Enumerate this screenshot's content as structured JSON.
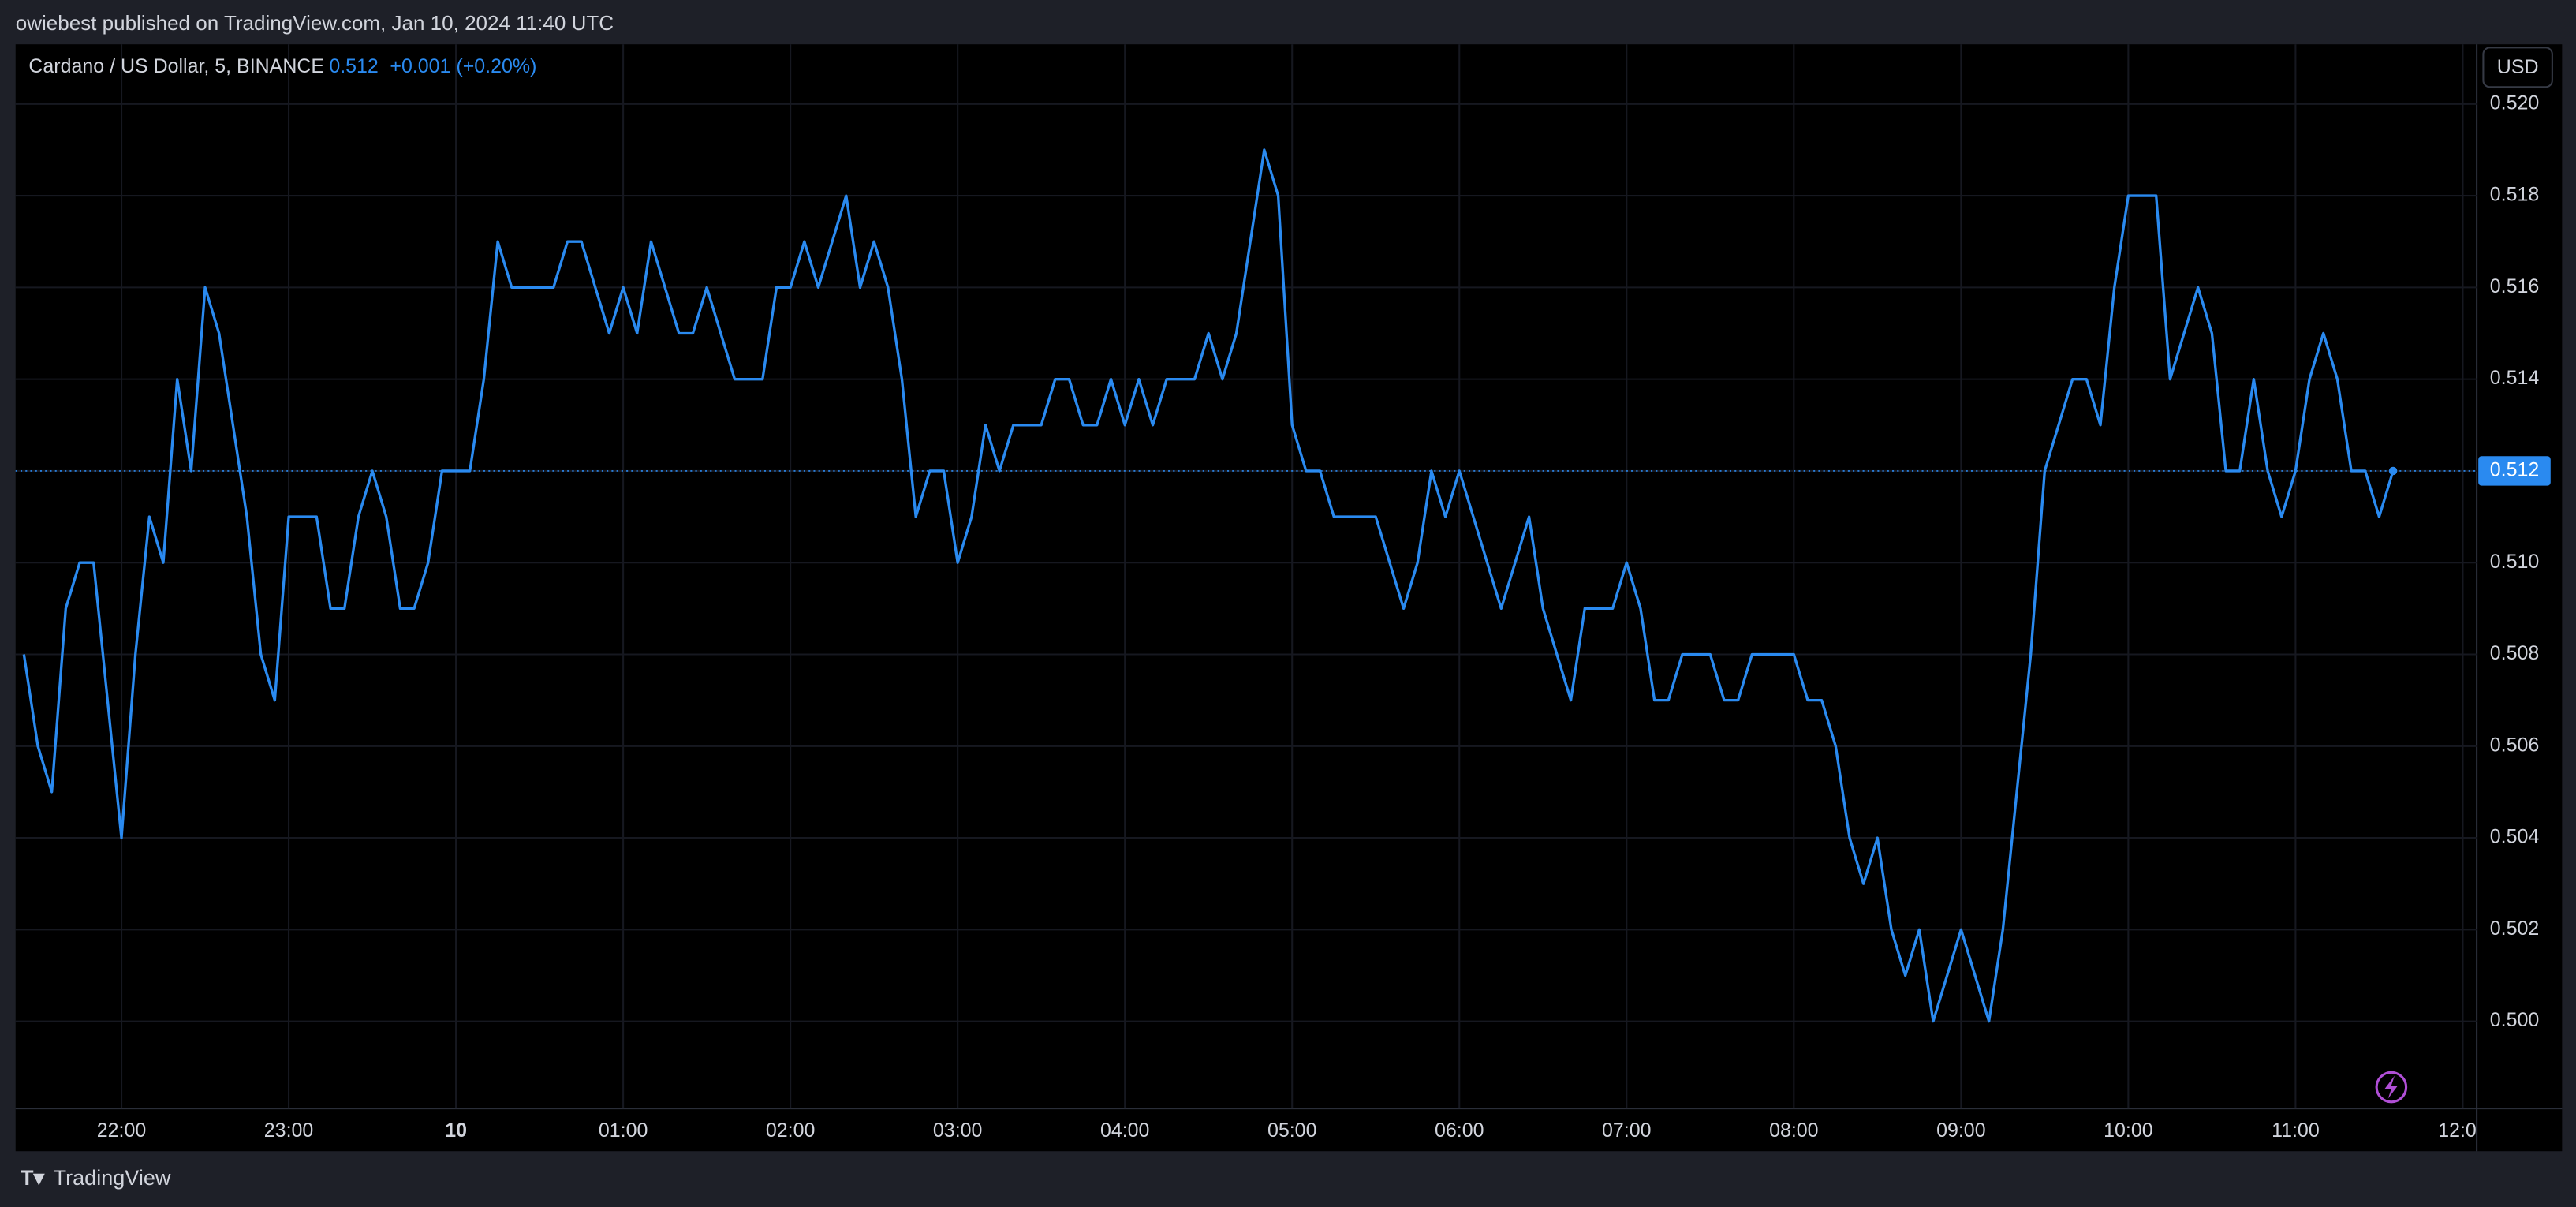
{
  "header": {
    "text": "owiebest published on TradingView.com, Jan 10, 2024 11:40 UTC"
  },
  "footer": {
    "brand": "TradingView"
  },
  "chart_data": {
    "type": "line",
    "change": "+0.001 (+0.20%)",
    "currency": "USD",
    "x": [
      "21:25",
      "21:30",
      "21:35",
      "21:40",
      "21:45",
      "21:50",
      "21:55",
      "22:00",
      "22:05",
      "22:10",
      "22:15",
      "22:20",
      "22:25",
      "22:30",
      "22:35",
      "22:40",
      "22:45",
      "22:50",
      "22:55",
      "23:00",
      "23:05",
      "23:10",
      "23:15",
      "23:20",
      "23:25",
      "23:30",
      "23:35",
      "23:40",
      "23:45",
      "23:50",
      "23:55",
      "00:00",
      "00:05",
      "00:10",
      "00:15",
      "00:20",
      "00:25",
      "00:30",
      "00:35",
      "00:40",
      "00:45",
      "00:50",
      "00:55",
      "01:00",
      "01:05",
      "01:10",
      "01:15",
      "01:20",
      "01:25",
      "01:30",
      "01:35",
      "01:40",
      "01:45",
      "01:50",
      "01:55",
      "02:00",
      "02:05",
      "02:10",
      "02:15",
      "02:20",
      "02:25",
      "02:30",
      "02:35",
      "02:40",
      "02:45",
      "02:50",
      "02:55",
      "03:00",
      "03:05",
      "03:10",
      "03:15",
      "03:20",
      "03:25",
      "03:30",
      "03:35",
      "03:40",
      "03:45",
      "03:50",
      "03:55",
      "04:00",
      "04:05",
      "04:10",
      "04:15",
      "04:20",
      "04:25",
      "04:30",
      "04:35",
      "04:40",
      "04:45",
      "04:50",
      "04:55",
      "05:00",
      "05:05",
      "05:10",
      "05:15",
      "05:20",
      "05:25",
      "05:30",
      "05:35",
      "05:40",
      "05:45",
      "05:50",
      "05:55",
      "06:00",
      "06:05",
      "06:10",
      "06:15",
      "06:20",
      "06:25",
      "06:30",
      "06:35",
      "06:40",
      "06:45",
      "06:50",
      "06:55",
      "07:00",
      "07:05",
      "07:10",
      "07:15",
      "07:20",
      "07:25",
      "07:30",
      "07:35",
      "07:40",
      "07:45",
      "07:50",
      "07:55",
      "08:00",
      "08:05",
      "08:10",
      "08:15",
      "08:20",
      "08:25",
      "08:30",
      "08:35",
      "08:40",
      "08:45",
      "08:50",
      "08:55",
      "09:00",
      "09:05",
      "09:10",
      "09:15",
      "09:20",
      "09:25",
      "09:30",
      "09:35",
      "09:40",
      "09:45",
      "09:50",
      "09:55",
      "10:00",
      "10:05",
      "10:10",
      "10:15",
      "10:20",
      "10:25",
      "10:30",
      "10:35",
      "10:40",
      "10:45",
      "10:50",
      "10:55",
      "11:00",
      "11:05",
      "11:10",
      "11:15",
      "11:20",
      "11:25",
      "11:30",
      "11:35"
    ],
    "series": [
      {
        "name": "Cardano / US Dollar, 5, BINANCE",
        "color": "#2a8af0",
        "values": [
          0.508,
          0.506,
          0.505,
          0.509,
          0.51,
          0.51,
          0.507,
          0.504,
          0.508,
          0.511,
          0.51,
          0.514,
          0.512,
          0.516,
          0.515,
          0.513,
          0.511,
          0.508,
          0.507,
          0.511,
          0.511,
          0.511,
          0.509,
          0.509,
          0.511,
          0.512,
          0.511,
          0.509,
          0.509,
          0.51,
          0.512,
          0.512,
          0.512,
          0.514,
          0.517,
          0.516,
          0.516,
          0.516,
          0.516,
          0.517,
          0.517,
          0.516,
          0.515,
          0.516,
          0.515,
          0.517,
          0.516,
          0.515,
          0.515,
          0.516,
          0.515,
          0.514,
          0.514,
          0.514,
          0.516,
          0.516,
          0.517,
          0.516,
          0.517,
          0.518,
          0.516,
          0.517,
          0.516,
          0.514,
          0.511,
          0.512,
          0.512,
          0.51,
          0.511,
          0.513,
          0.512,
          0.513,
          0.513,
          0.513,
          0.514,
          0.514,
          0.513,
          0.513,
          0.514,
          0.513,
          0.514,
          0.513,
          0.514,
          0.514,
          0.514,
          0.515,
          0.514,
          0.515,
          0.517,
          0.519,
          0.518,
          0.513,
          0.512,
          0.512,
          0.511,
          0.511,
          0.511,
          0.511,
          0.51,
          0.509,
          0.51,
          0.512,
          0.511,
          0.512,
          0.511,
          0.51,
          0.509,
          0.51,
          0.511,
          0.509,
          0.508,
          0.507,
          0.509,
          0.509,
          0.509,
          0.51,
          0.509,
          0.507,
          0.507,
          0.508,
          0.508,
          0.508,
          0.507,
          0.507,
          0.508,
          0.508,
          0.508,
          0.508,
          0.507,
          0.507,
          0.506,
          0.504,
          0.503,
          0.504,
          0.502,
          0.501,
          0.502,
          0.5,
          0.501,
          0.502,
          0.501,
          0.5,
          0.502,
          0.505,
          0.508,
          0.512,
          0.513,
          0.514,
          0.514,
          0.513,
          0.516,
          0.518,
          0.518,
          0.518,
          0.514,
          0.515,
          0.516,
          0.515,
          0.512,
          0.512,
          0.514,
          0.512,
          0.511,
          0.512,
          0.514,
          0.515,
          0.514,
          0.512,
          0.512,
          0.511,
          0.512
        ]
      }
    ],
    "xlim": [
      "21:22",
      "12:05"
    ],
    "xticks": [
      "22:00",
      "23:00",
      {
        "value": "00:00",
        "label": "10"
      },
      "01:00",
      "02:00",
      "03:00",
      "04:00",
      "05:00",
      "06:00",
      "07:00",
      "08:00",
      "09:00",
      "10:00",
      "11:00",
      "12:00"
    ],
    "ylim": [
      0.4981,
      0.5213
    ],
    "yticks": [
      {
        "value": 0.5,
        "label": "0.500"
      },
      {
        "value": 0.502,
        "label": "0.502"
      },
      {
        "value": 0.504,
        "label": "0.504"
      },
      {
        "value": 0.506,
        "label": "0.506"
      },
      {
        "value": 0.508,
        "label": "0.508"
      },
      {
        "value": 0.51,
        "label": "0.510"
      },
      {
        "value": 0.512,
        "label": "0.512"
      },
      {
        "value": 0.514,
        "label": "0.514"
      },
      {
        "value": 0.516,
        "label": "0.516"
      },
      {
        "value": 0.518,
        "label": "0.518"
      },
      {
        "value": 0.52,
        "label": "0.520"
      }
    ],
    "grid": true
  }
}
